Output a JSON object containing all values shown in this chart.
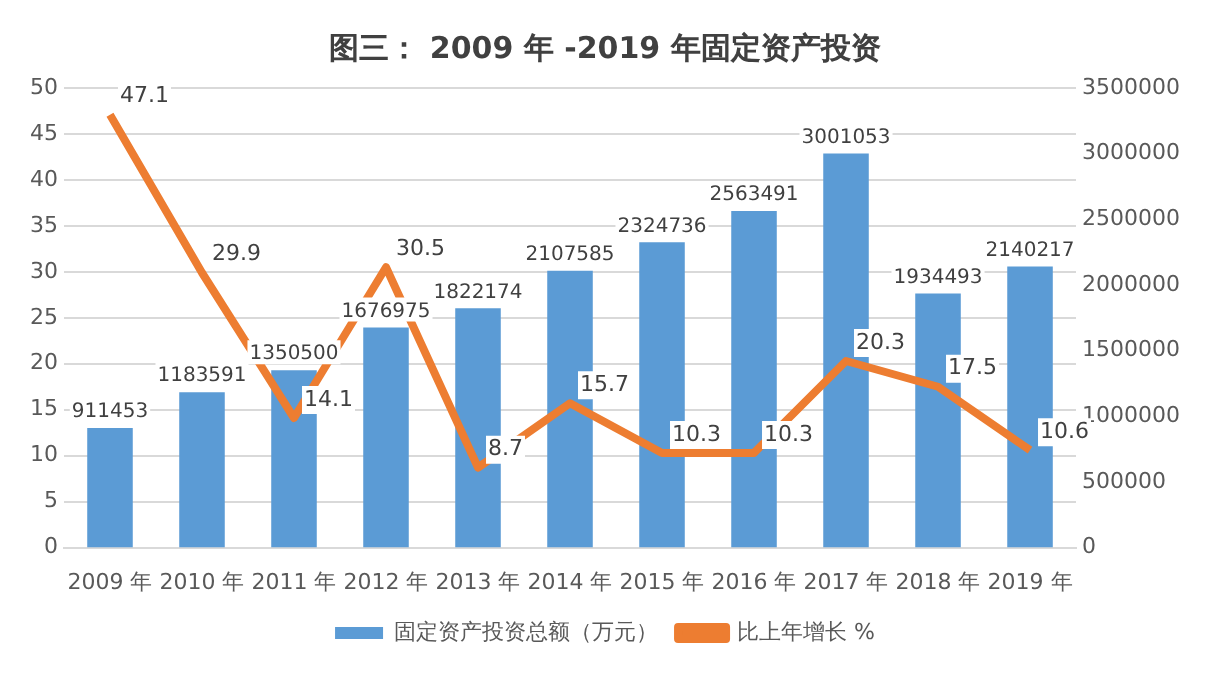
{
  "chart_data": {
    "type": "bar",
    "title": "图三： 2009 年 -2019 年固定资产投资",
    "categories": [
      "2009 年",
      "2010 年",
      "2011 年",
      "2012 年",
      "2013 年",
      "2014 年",
      "2015 年",
      "2016 年",
      "2017 年",
      "2018 年",
      "2019 年"
    ],
    "series": [
      {
        "name": "固定资产投资总额（万元）",
        "axis": "y2",
        "color": "#5b9bd5",
        "values": [
          911453,
          1183591,
          1350500,
          1676975,
          1822174,
          2107585,
          2324736,
          2563491,
          3001053,
          1934493,
          2140217
        ]
      },
      {
        "name": "比上年增长 %",
        "type": "line",
        "color": "#ed7d31",
        "values": [
          47.1,
          29.9,
          14.1,
          30.5,
          8.7,
          15.7,
          10.3,
          10.3,
          20.3,
          17.5,
          10.6
        ]
      }
    ],
    "ylim": [
      0,
      50
    ],
    "yticks": [
      0,
      5,
      10,
      15,
      20,
      25,
      30,
      35,
      40,
      45,
      50
    ],
    "y2lim": [
      0,
      3500000
    ],
    "y2ticks": [
      0,
      500000,
      1000000,
      1500000,
      2000000,
      2500000,
      3000000,
      3500000
    ],
    "grid": "y",
    "legend": "bottom",
    "data_labels": true,
    "marker": "none",
    "line_style": "solid"
  }
}
